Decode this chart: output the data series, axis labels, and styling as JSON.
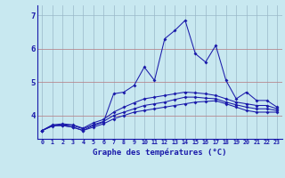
{
  "xlabel": "Graphe des températures (°C)",
  "background_color": "#c8e8f0",
  "plot_bg_color": "#c8e8f0",
  "grid_color": "#9ab8c8",
  "line_color": "#1a1aaa",
  "red_line_color": "#cc6666",
  "xlim": [
    -0.5,
    23.5
  ],
  "ylim": [
    3.3,
    7.3
  ],
  "yticks": [
    4,
    5,
    6,
    7
  ],
  "xticks": [
    0,
    1,
    2,
    3,
    4,
    5,
    6,
    7,
    8,
    9,
    10,
    11,
    12,
    13,
    14,
    15,
    16,
    17,
    18,
    19,
    20,
    21,
    22,
    23
  ],
  "xtick_labels": [
    "0",
    "1",
    "2",
    "3",
    "4",
    "5",
    "6",
    "7",
    "8",
    "9",
    "10",
    "11",
    "12",
    "13",
    "14",
    "15",
    "16",
    "17",
    "18",
    "19",
    "20",
    "21",
    "22",
    "23"
  ],
  "series": [
    [
      3.55,
      3.7,
      3.7,
      3.65,
      3.55,
      3.7,
      3.8,
      4.65,
      4.7,
      4.9,
      5.45,
      5.05,
      6.3,
      6.55,
      6.85,
      5.85,
      5.6,
      6.1,
      5.05,
      4.5,
      4.7,
      4.45,
      4.45,
      4.25
    ],
    [
      3.55,
      3.7,
      3.7,
      3.65,
      3.55,
      3.65,
      3.75,
      3.9,
      4.0,
      4.1,
      4.15,
      4.2,
      4.25,
      4.3,
      4.35,
      4.4,
      4.42,
      4.44,
      4.35,
      4.25,
      4.15,
      4.1,
      4.1,
      4.1
    ],
    [
      3.55,
      3.68,
      3.72,
      3.7,
      3.6,
      3.72,
      3.82,
      4.0,
      4.1,
      4.2,
      4.3,
      4.35,
      4.4,
      4.48,
      4.55,
      4.55,
      4.52,
      4.5,
      4.4,
      4.32,
      4.25,
      4.2,
      4.2,
      4.15
    ],
    [
      3.55,
      3.72,
      3.75,
      3.72,
      3.62,
      3.78,
      3.88,
      4.1,
      4.25,
      4.38,
      4.5,
      4.55,
      4.6,
      4.65,
      4.7,
      4.68,
      4.65,
      4.6,
      4.5,
      4.4,
      4.35,
      4.3,
      4.3,
      4.2
    ]
  ]
}
